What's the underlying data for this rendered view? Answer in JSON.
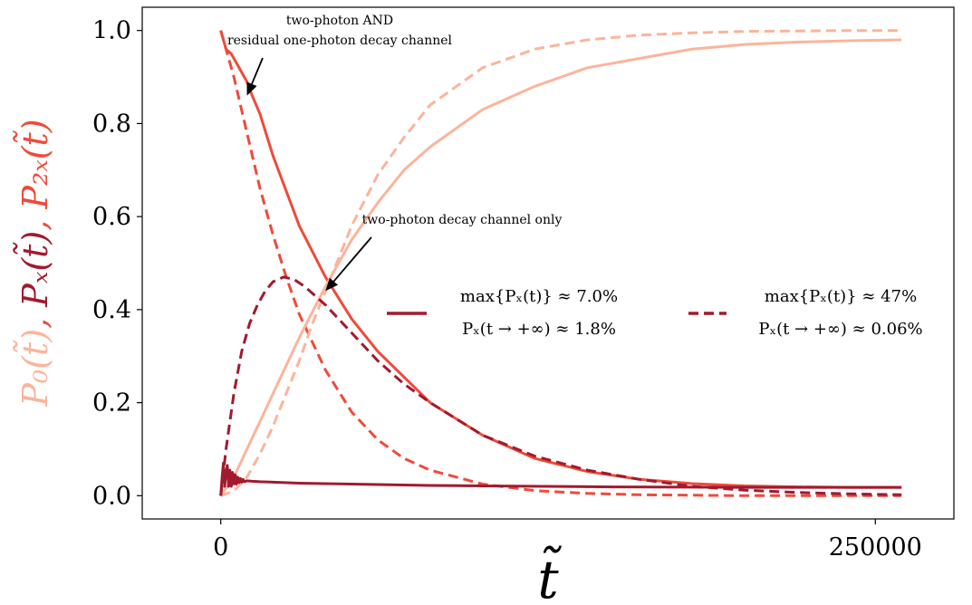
{
  "chart_data": {
    "type": "line",
    "xlabel": "t̃",
    "ylabel_parts": [
      {
        "text": "P₀(t̃)",
        "color": "#fbb49b"
      },
      {
        "text": ", ",
        "color": "#ef4a3a"
      },
      {
        "text": "Pₓ(t̃)",
        "color": "#a11a2e"
      },
      {
        "text": ", ",
        "color": "#ef4a3a"
      },
      {
        "text": "P₂ₓ(t̃)",
        "color": "#ef4a3a"
      }
    ],
    "xlim": [
      -30000,
      280000
    ],
    "ylim": [
      -0.05,
      1.05
    ],
    "xticks": [
      0,
      250000
    ],
    "xtick_labels": [
      "0",
      "250000"
    ],
    "yticks": [
      0.0,
      0.2,
      0.4,
      0.6,
      0.8,
      1.0
    ],
    "ytick_labels": [
      "0.0",
      "0.2",
      "0.4",
      "0.6",
      "0.8",
      "1.0"
    ],
    "colors": {
      "P0": "#fbb49b",
      "P2X": "#ef4a3a",
      "PX": "#a11a2e"
    },
    "series": [
      {
        "key": "P2X_solid",
        "color": "#ef4a3a",
        "dash": "solid",
        "x": [
          0,
          2000,
          4000,
          6000,
          8000,
          10000,
          12000,
          15000,
          20000,
          30000,
          40000,
          50000,
          60000,
          80000,
          100000,
          120000,
          140000,
          160000,
          180000,
          200000,
          220000,
          240000,
          260000
        ],
        "y": [
          1.0,
          0.96,
          0.95,
          0.93,
          0.91,
          0.89,
          0.86,
          0.82,
          0.73,
          0.58,
          0.47,
          0.38,
          0.31,
          0.2,
          0.13,
          0.08,
          0.052,
          0.035,
          0.026,
          0.021,
          0.019,
          0.018,
          0.018
        ]
      },
      {
        "key": "P2X_dashed",
        "color": "#ef4a3a",
        "dash": "dashed",
        "x": [
          0,
          5000,
          10000,
          15000,
          20000,
          25000,
          30000,
          40000,
          50000,
          60000,
          70000,
          80000,
          100000,
          120000,
          140000,
          160000,
          180000,
          200000,
          220000,
          240000,
          260000
        ],
        "y": [
          1.0,
          0.9,
          0.78,
          0.66,
          0.56,
          0.47,
          0.39,
          0.27,
          0.18,
          0.12,
          0.08,
          0.055,
          0.025,
          0.011,
          0.005,
          0.002,
          0.001,
          0.0,
          0.0,
          0.0,
          0.0
        ]
      },
      {
        "key": "P0_solid",
        "color": "#fbb49b",
        "dash": "solid",
        "x": [
          0,
          5000,
          10000,
          15000,
          20000,
          25000,
          30000,
          40000,
          50000,
          60000,
          70000,
          80000,
          100000,
          120000,
          140000,
          160000,
          180000,
          200000,
          220000,
          240000,
          260000
        ],
        "y": [
          0.0,
          0.04,
          0.1,
          0.16,
          0.22,
          0.28,
          0.34,
          0.45,
          0.55,
          0.63,
          0.7,
          0.75,
          0.83,
          0.88,
          0.92,
          0.94,
          0.96,
          0.97,
          0.975,
          0.978,
          0.98
        ]
      },
      {
        "key": "P0_dashed",
        "color": "#fbb49b",
        "dash": "dashed",
        "x": [
          0,
          5000,
          10000,
          15000,
          20000,
          25000,
          30000,
          35000,
          40000,
          50000,
          60000,
          70000,
          80000,
          100000,
          120000,
          140000,
          160000,
          180000,
          200000,
          220000,
          240000,
          260000
        ],
        "y": [
          0.0,
          0.01,
          0.04,
          0.09,
          0.15,
          0.22,
          0.29,
          0.37,
          0.44,
          0.58,
          0.69,
          0.77,
          0.84,
          0.92,
          0.96,
          0.98,
          0.99,
          0.995,
          0.998,
          0.999,
          1.0,
          1.0
        ]
      },
      {
        "key": "PX_solid",
        "color": "#a11a2e",
        "dash": "solid",
        "x": [
          0,
          500,
          1000,
          1500,
          2000,
          2500,
          3000,
          3500,
          4000,
          4500,
          5000,
          5500,
          6000,
          6500,
          7000,
          7500,
          8000,
          8500,
          9000,
          10000,
          12000,
          15000,
          20000,
          30000,
          40000,
          60000,
          80000,
          100000,
          150000,
          200000,
          260000
        ],
        "y": [
          0.0,
          0.04,
          0.07,
          0.02,
          0.05,
          0.065,
          0.02,
          0.055,
          0.02,
          0.05,
          0.025,
          0.045,
          0.025,
          0.04,
          0.028,
          0.037,
          0.029,
          0.035,
          0.03,
          0.032,
          0.031,
          0.03,
          0.029,
          0.027,
          0.026,
          0.024,
          0.022,
          0.021,
          0.019,
          0.018,
          0.018
        ]
      },
      {
        "key": "PX_dashed",
        "color": "#a11a2e",
        "dash": "dashed",
        "x": [
          0,
          2000,
          5000,
          8000,
          11000,
          14000,
          17000,
          20000,
          24000,
          28000,
          32000,
          36000,
          40000,
          50000,
          60000,
          70000,
          80000,
          100000,
          120000,
          140000,
          160000,
          180000,
          200000,
          220000,
          240000,
          260000
        ],
        "y": [
          0.0,
          0.1,
          0.22,
          0.31,
          0.37,
          0.41,
          0.44,
          0.46,
          0.47,
          0.465,
          0.45,
          0.43,
          0.41,
          0.35,
          0.29,
          0.24,
          0.2,
          0.13,
          0.085,
          0.055,
          0.035,
          0.02,
          0.012,
          0.007,
          0.004,
          0.002
        ]
      }
    ],
    "annotations": [
      {
        "lines": [
          "two-photon AND",
          "residual one-photon decay channel"
        ],
        "arrow_to_x": 10000,
        "arrow_to_y": 0.86
      },
      {
        "lines": [
          "two-photon decay channel only"
        ],
        "arrow_to_x": 40000,
        "arrow_to_y": 0.44
      }
    ],
    "legend": {
      "placement": "center-right",
      "entries": [
        {
          "dash": "solid",
          "color": "#a11a2e",
          "line1": "max{Pₓ(t)} ≈ 7.0%",
          "line2": "Pₓ(t → +∞) ≈ 1.8%"
        },
        {
          "dash": "dashed",
          "color": "#a11a2e",
          "line1": "max{Pₓ(t)} ≈ 47%",
          "line2": "Pₓ(t → +∞) ≈ 0.06%"
        }
      ]
    }
  }
}
